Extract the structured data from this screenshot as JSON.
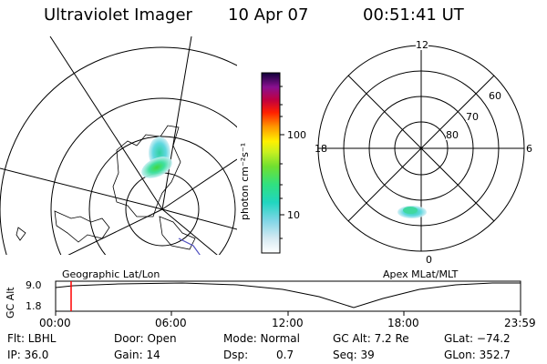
{
  "header": {
    "title": "Ultraviolet Imager",
    "date": "10 Apr 07",
    "time": "00:51:41 UT"
  },
  "colorbar": {
    "label": "photon cm⁻²s⁻¹",
    "ticks": [
      "100",
      "10"
    ],
    "scale": "log"
  },
  "polar_plot": {
    "labels": {
      "top": "12",
      "left": "18",
      "right": "6",
      "bottom": "0"
    },
    "ring_labels": [
      "60",
      "70",
      "80"
    ]
  },
  "timeline": {
    "left_label": "Geographic Lat/Lon",
    "right_label": "Apex MLat/MLT",
    "ylabel": "GC Alt",
    "ytick_top": "9.0",
    "ytick_bottom": "1.8",
    "xticks": [
      "00:00",
      "06:00",
      "12:00",
      "18:00",
      "23:59"
    ],
    "current_time_marker": "00:51",
    "marker_color": "#ff0000"
  },
  "info": {
    "flt": "Flt: LBHL",
    "door": "Door: Open",
    "mode": "Mode: Normal",
    "gcalt": "GC Alt: 7.2 Re",
    "glat": "GLat: −74.2",
    "ip": "IP: 36.0",
    "gain": "Gain: 14",
    "dsp_label": "Dsp:",
    "dsp_value": "0.7",
    "seq": "Seq: 39",
    "glon": "GLon: 352.7"
  }
}
